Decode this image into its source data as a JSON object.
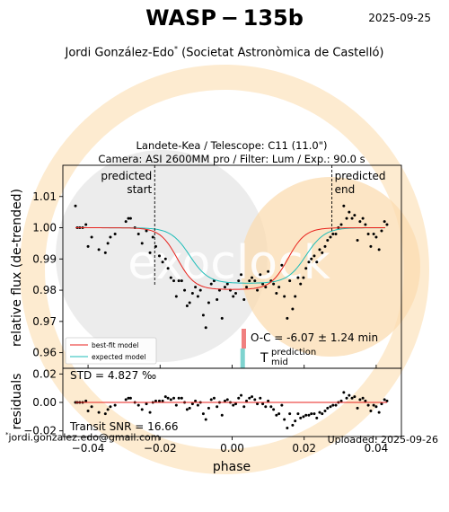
{
  "header": {
    "title": "WASP − 135b",
    "date": "2025-09-25",
    "observer": "Jordi González-Edo",
    "observer_mark": "*",
    "society": "(Societat Astronòmica de Castelló)"
  },
  "footer": {
    "email_mark": "*",
    "email": "jordi.gonzalez.edo@gmail.com",
    "uploaded": "Uploaded: 2025-09-26"
  },
  "watermark": {
    "text": "exoclock"
  },
  "chart_data": [
    {
      "type": "scatter",
      "title": "Landete-Kea / Telescope: C11 (11.0\")",
      "subtitle": "Camera: ASI 2600MM pro / Filter: Lum / Exp.: 90.0 s",
      "xlabel": "phase",
      "ylabel": "relative flux (de-trended)",
      "xlim": [
        -0.047,
        0.047
      ],
      "ylim": [
        0.955,
        1.02
      ],
      "yticks": [
        "0.96",
        "0.97",
        "0.98",
        "0.99",
        "1.00",
        "1.01"
      ],
      "grid": false,
      "legend": {
        "placement": "lower-left",
        "entries": [
          {
            "name": "best-fit model",
            "color": "#e8221c"
          },
          {
            "name": "expected model",
            "color": "#1cbdb8"
          }
        ]
      },
      "annotations": {
        "predicted_start": {
          "label": [
            "predicted",
            "start"
          ],
          "x": -0.0215
        },
        "predicted_end": {
          "label": [
            "predicted",
            "end"
          ],
          "x": 0.0277
        },
        "oc_label": "O-C = -6.07 ± 1.24 min",
        "tmid_symbol": "T",
        "tmid_sup": "prediction",
        "tmid_sub": "mid",
        "tmid_x": 0.0028,
        "oc_color": "#f08080",
        "tmid_color": "#7ed3cf"
      },
      "series": [
        {
          "name": "data",
          "color": "#000000",
          "x": [
            -0.0435,
            -0.043,
            -0.0423,
            -0.0415,
            -0.0406,
            -0.04,
            -0.039,
            -0.037,
            -0.0352,
            -0.0345,
            -0.0338,
            -0.0325,
            -0.0295,
            -0.0288,
            -0.0282,
            -0.027,
            -0.026,
            -0.025,
            -0.0238,
            -0.0228,
            -0.022,
            -0.0212,
            -0.0202,
            -0.0193,
            -0.0185,
            -0.0178,
            -0.017,
            -0.0162,
            -0.0155,
            -0.0148,
            -0.014,
            -0.0132,
            -0.0125,
            -0.0118,
            -0.011,
            -0.0102,
            -0.0095,
            -0.0088,
            -0.008,
            -0.0073,
            -0.0065,
            -0.0058,
            -0.005,
            -0.0042,
            -0.0035,
            -0.0028,
            -0.002,
            -0.0013,
            -0.0005,
            0.0003,
            0.001,
            0.0018,
            0.0025,
            0.0033,
            0.004,
            0.0048,
            0.0055,
            0.0063,
            0.007,
            0.0078,
            0.0085,
            0.0093,
            0.01,
            0.0108,
            0.0115,
            0.0123,
            0.013,
            0.0138,
            0.0145,
            0.0153,
            0.016,
            0.0168,
            0.0175,
            0.0183,
            0.019,
            0.0198,
            0.0205,
            0.0213,
            0.022,
            0.0228,
            0.0235,
            0.0243,
            0.025,
            0.0258,
            0.0265,
            0.0273,
            0.028,
            0.0288,
            0.0295,
            0.0303,
            0.031,
            0.0318,
            0.0325,
            0.0333,
            0.034,
            0.0348,
            0.0355,
            0.0363,
            0.037,
            0.0378,
            0.0385,
            0.0393,
            0.04,
            0.0408,
            0.0415,
            0.0423,
            0.043
          ],
          "y": [
            1.007,
            1.0,
            1.0,
            1.0,
            1.001,
            0.994,
            0.997,
            0.993,
            0.992,
            0.995,
            0.997,
            0.998,
            1.002,
            1.003,
            1.003,
            1.0,
            0.998,
            0.995,
            0.999,
            0.992,
            0.997,
            0.994,
            0.991,
            0.989,
            0.99,
            0.987,
            0.984,
            0.983,
            0.978,
            0.983,
            0.983,
            0.98,
            0.975,
            0.976,
            0.979,
            0.981,
            0.978,
            0.98,
            0.972,
            0.968,
            0.976,
            0.982,
            0.983,
            0.977,
            0.98,
            0.971,
            0.981,
            0.982,
            0.98,
            0.978,
            0.979,
            0.983,
            0.985,
            0.977,
            0.981,
            0.983,
            0.984,
            0.983,
            0.98,
            0.985,
            0.982,
            0.981,
            0.986,
            0.983,
            0.982,
            0.979,
            0.981,
            0.988,
            0.978,
            0.971,
            0.983,
            0.974,
            0.978,
            0.984,
            0.982,
            0.984,
            0.987,
            0.989,
            0.99,
            0.991,
            0.989,
            0.993,
            0.992,
            0.994,
            0.996,
            0.997,
            0.998,
            0.998,
            1.0,
            1.001,
            1.007,
            1.003,
            1.005,
            1.003,
            1.004,
            0.996,
            1.002,
            1.003,
            1.001,
            0.998,
            0.994,
            0.998,
            0.997,
            0.993,
            0.999,
            1.002,
            1.001
          ]
        }
      ]
    },
    {
      "type": "scatter",
      "xlabel": "phase",
      "ylabel": "residuals",
      "xlim": [
        -0.047,
        0.047
      ],
      "ylim": [
        -0.024,
        0.024
      ],
      "xticks": [
        "−0.04",
        "−0.02",
        "0.00",
        "0.02",
        "0.04"
      ],
      "yticks": [
        "−0.02",
        "0.00",
        "0.02"
      ],
      "std_label": "STD = 4.827 ‰",
      "snr_label": "Transit SNR = 16.66",
      "residuals": [
        0.0,
        0.0,
        0.0,
        0.0,
        0.001,
        -0.006,
        -0.003,
        -0.007,
        -0.008,
        -0.005,
        -0.003,
        -0.002,
        0.002,
        0.003,
        0.003,
        0.0,
        -0.002,
        -0.005,
        -0.001,
        -0.007,
        0.0,
        0.001,
        0.001,
        0.001,
        0.004,
        0.003,
        0.002,
        0.003,
        -0.002,
        0.003,
        0.003,
        0.0,
        -0.005,
        -0.004,
        -0.001,
        0.001,
        -0.002,
        0.0,
        -0.008,
        -0.012,
        -0.004,
        0.002,
        0.003,
        -0.003,
        0.0,
        -0.009,
        0.001,
        0.002,
        0.0,
        -0.002,
        -0.001,
        0.003,
        0.005,
        -0.003,
        0.001,
        0.003,
        0.004,
        0.002,
        -0.001,
        0.003,
        -0.001,
        -0.003,
        0.001,
        -0.003,
        -0.005,
        -0.009,
        -0.008,
        -0.002,
        -0.012,
        -0.018,
        -0.008,
        -0.016,
        -0.013,
        -0.008,
        -0.011,
        -0.01,
        -0.009,
        -0.009,
        -0.008,
        -0.008,
        -0.011,
        -0.007,
        -0.008,
        -0.006,
        -0.004,
        -0.003,
        -0.002,
        -0.002,
        0.0,
        0.001,
        0.007,
        0.003,
        0.005,
        0.003,
        0.004,
        -0.004,
        0.002,
        0.003,
        0.001,
        -0.002,
        -0.006,
        -0.002,
        -0.003,
        -0.007,
        -0.001,
        0.002,
        0.001
      ]
    }
  ]
}
